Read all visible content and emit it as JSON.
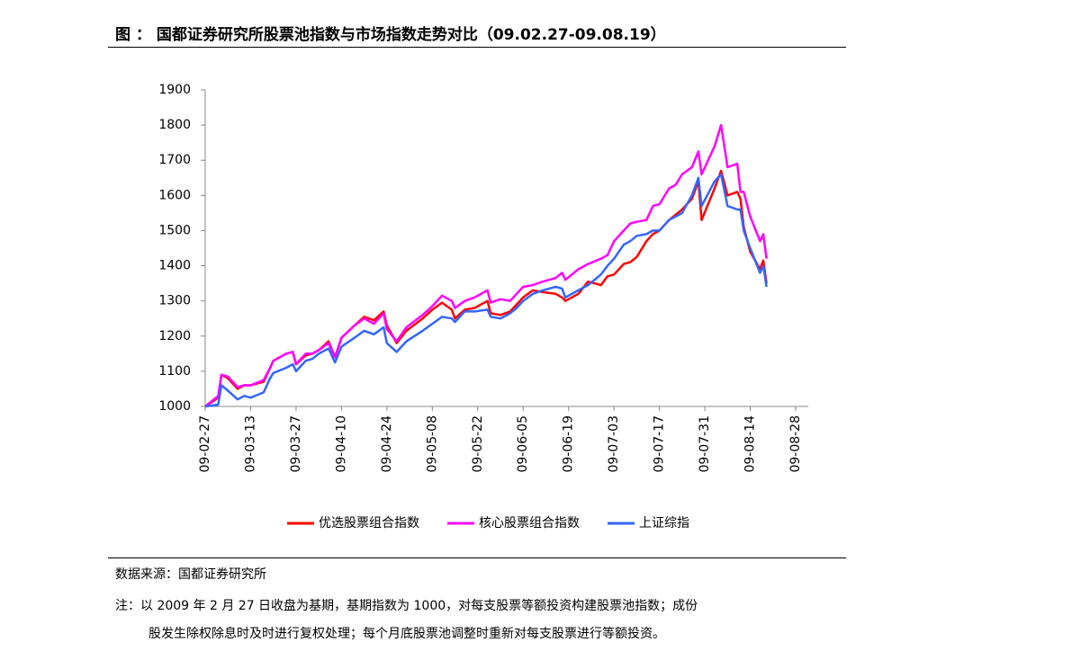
{
  "header": {
    "title": "图 ： 国都证券研究所股票池指数与市场指数走势对比（09.02.27-09.08.19）"
  },
  "footer": {
    "source": "数据来源：国都证券研究所",
    "note_line1": "注：以 2009 年 2 月 27 日收盘为基期，基期指数为 1000，对每支股票等额投资构建股票池指数；成份",
    "note_line2": "股发生除权除息时及时进行复权处理；每个月底股票池调整时重新对每支股票进行等额投资。"
  },
  "chart_data": {
    "type": "line",
    "x": [
      "09-02-27",
      "09-03-03",
      "09-03-04",
      "09-03-06",
      "09-03-09",
      "09-03-11",
      "09-03-13",
      "09-03-17",
      "09-03-19",
      "09-03-20",
      "09-03-24",
      "09-03-26",
      "09-03-27",
      "09-03-30",
      "09-04-01",
      "09-04-03",
      "09-04-06",
      "09-04-08",
      "09-04-10",
      "09-04-14",
      "09-04-17",
      "09-04-20",
      "09-04-23",
      "09-04-24",
      "09-04-27",
      "09-04-30",
      "09-05-05",
      "09-05-08",
      "09-05-11",
      "09-05-14",
      "09-05-15",
      "09-05-18",
      "09-05-21",
      "09-05-25",
      "09-05-26",
      "09-05-29",
      "09-06-01",
      "09-06-03",
      "09-06-05",
      "09-06-08",
      "09-06-11",
      "09-06-15",
      "09-06-17",
      "09-06-18",
      "09-06-22",
      "09-06-25",
      "09-06-29",
      "09-07-01",
      "09-07-03",
      "09-07-06",
      "09-07-08",
      "09-07-10",
      "09-07-13",
      "09-07-15",
      "09-07-17",
      "09-07-20",
      "09-07-22",
      "09-07-24",
      "09-07-27",
      "09-07-29",
      "09-07-30",
      "09-08-03",
      "09-08-05",
      "09-08-07",
      "09-08-10",
      "09-08-11",
      "09-08-12",
      "09-08-14",
      "09-08-17",
      "09-08-18",
      "09-08-19"
    ],
    "series": [
      {
        "name": "优选股票组合指数",
        "color": "#ff0000",
        "values": [
          1000,
          1025,
          1090,
          1080,
          1050,
          1060,
          1060,
          1070,
          1110,
          1130,
          1150,
          1155,
          1120,
          1145,
          1150,
          1160,
          1185,
          1140,
          1195,
          1230,
          1255,
          1245,
          1270,
          1230,
          1180,
          1215,
          1250,
          1275,
          1295,
          1275,
          1250,
          1275,
          1280,
          1300,
          1265,
          1260,
          1270,
          1290,
          1310,
          1330,
          1325,
          1320,
          1310,
          1300,
          1320,
          1355,
          1345,
          1370,
          1375,
          1405,
          1410,
          1425,
          1470,
          1490,
          1500,
          1530,
          1545,
          1560,
          1590,
          1640,
          1530,
          1620,
          1670,
          1600,
          1610,
          1590,
          1510,
          1440,
          1390,
          1415,
          1350
        ]
      },
      {
        "name": "核心股票组合指数",
        "color": "#ff00ff",
        "values": [
          1000,
          1030,
          1090,
          1085,
          1055,
          1060,
          1060,
          1075,
          1110,
          1130,
          1150,
          1155,
          1120,
          1150,
          1150,
          1160,
          1180,
          1140,
          1195,
          1230,
          1250,
          1235,
          1265,
          1220,
          1185,
          1225,
          1260,
          1285,
          1315,
          1300,
          1280,
          1300,
          1310,
          1330,
          1295,
          1305,
          1300,
          1320,
          1340,
          1345,
          1355,
          1365,
          1380,
          1360,
          1390,
          1405,
          1420,
          1430,
          1470,
          1500,
          1520,
          1525,
          1530,
          1570,
          1575,
          1620,
          1630,
          1660,
          1680,
          1725,
          1660,
          1740,
          1800,
          1680,
          1690,
          1610,
          1610,
          1540,
          1470,
          1490,
          1420
        ]
      },
      {
        "name": "上证综指",
        "color": "#3366ff",
        "values": [
          1000,
          1005,
          1060,
          1045,
          1020,
          1030,
          1025,
          1040,
          1080,
          1095,
          1110,
          1120,
          1100,
          1130,
          1135,
          1150,
          1165,
          1125,
          1170,
          1195,
          1215,
          1205,
          1225,
          1180,
          1155,
          1185,
          1215,
          1235,
          1255,
          1250,
          1240,
          1270,
          1270,
          1275,
          1255,
          1250,
          1265,
          1280,
          1300,
          1320,
          1330,
          1340,
          1335,
          1310,
          1330,
          1345,
          1375,
          1400,
          1420,
          1460,
          1470,
          1485,
          1490,
          1500,
          1500,
          1530,
          1540,
          1550,
          1600,
          1650,
          1570,
          1640,
          1660,
          1570,
          1560,
          1560,
          1500,
          1450,
          1380,
          1400,
          1340
        ]
      }
    ],
    "xlim": [
      "09-02-27",
      "09-08-28"
    ],
    "xticks": [
      "09-02-27",
      "09-03-13",
      "09-03-27",
      "09-04-10",
      "09-04-24",
      "09-05-08",
      "09-05-22",
      "09-06-05",
      "09-06-19",
      "09-07-03",
      "09-07-17",
      "09-07-31",
      "09-08-14",
      "09-08-28"
    ],
    "ylim": [
      1000,
      1900
    ],
    "yticks": [
      1000,
      1100,
      1200,
      1300,
      1400,
      1500,
      1600,
      1700,
      1800,
      1900
    ],
    "legend": "bottom"
  }
}
